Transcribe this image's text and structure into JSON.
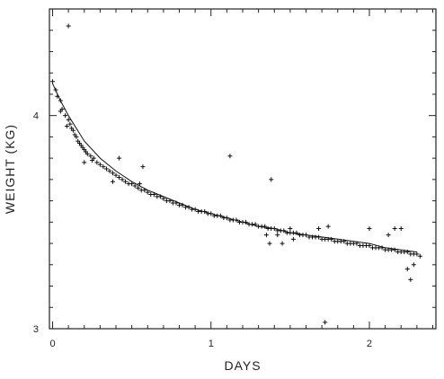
{
  "chart_data": {
    "type": "scatter",
    "title": "",
    "xlabel": "DAYS",
    "ylabel": "WEIGHT (KG)",
    "xlim": [
      -0.02,
      2.42
    ],
    "ylim": [
      3.0,
      4.5
    ],
    "x_ticks": [
      0,
      1,
      2
    ],
    "y_ticks": [
      3,
      4
    ],
    "x_tick_labels": [
      "0",
      "1",
      "2"
    ],
    "y_tick_labels": [
      "3",
      "4"
    ],
    "grid": false,
    "series": [
      {
        "marker": "plus",
        "x": [
          0.0,
          0.02,
          0.03,
          0.05,
          0.06,
          0.08,
          0.1,
          0.11,
          0.12,
          0.13,
          0.14,
          0.15,
          0.16,
          0.17,
          0.18,
          0.19,
          0.2,
          0.21,
          0.22,
          0.24,
          0.26,
          0.28,
          0.3,
          0.32,
          0.34,
          0.36,
          0.38,
          0.4,
          0.42,
          0.44,
          0.46,
          0.48,
          0.5,
          0.52,
          0.54,
          0.56,
          0.58,
          0.6,
          0.62,
          0.64,
          0.66,
          0.68,
          0.7,
          0.72,
          0.74,
          0.76,
          0.78,
          0.8,
          0.82,
          0.84,
          0.86,
          0.88,
          0.9,
          0.92,
          0.94,
          0.96,
          0.98,
          1.0,
          1.02,
          1.04,
          1.06,
          1.08,
          1.1,
          1.12,
          1.14,
          1.16,
          1.18,
          1.2,
          1.22,
          1.24,
          1.26,
          1.28,
          1.3,
          1.32,
          1.34,
          1.36,
          1.38,
          1.4,
          1.42,
          1.44,
          1.46,
          1.48,
          1.5,
          1.52,
          1.54,
          1.56,
          1.58,
          1.6,
          1.62,
          1.64,
          1.66,
          1.68,
          1.7,
          1.72,
          1.74,
          1.76,
          1.78,
          1.8,
          1.82,
          1.84,
          1.86,
          1.88,
          1.9,
          1.92,
          1.94,
          1.96,
          1.98,
          2.0,
          2.02,
          2.04,
          2.06,
          2.08,
          2.1,
          2.12,
          2.14,
          2.16,
          2.18,
          2.2,
          2.22,
          2.24,
          2.26,
          2.28,
          2.3,
          2.32
        ],
        "y": [
          4.16,
          4.12,
          4.09,
          4.07,
          4.03,
          4.0,
          3.98,
          3.96,
          3.94,
          3.93,
          3.91,
          3.9,
          3.88,
          3.87,
          3.86,
          3.85,
          3.84,
          3.83,
          3.82,
          3.81,
          3.8,
          3.78,
          3.77,
          3.76,
          3.75,
          3.74,
          3.73,
          3.72,
          3.71,
          3.7,
          3.69,
          3.68,
          3.68,
          3.67,
          3.66,
          3.65,
          3.65,
          3.64,
          3.63,
          3.63,
          3.62,
          3.62,
          3.61,
          3.6,
          3.6,
          3.59,
          3.59,
          3.58,
          3.58,
          3.57,
          3.57,
          3.56,
          3.56,
          3.55,
          3.55,
          3.55,
          3.54,
          3.54,
          3.53,
          3.53,
          3.53,
          3.52,
          3.52,
          3.51,
          3.51,
          3.51,
          3.5,
          3.5,
          3.5,
          3.49,
          3.49,
          3.49,
          3.48,
          3.48,
          3.48,
          3.47,
          3.47,
          3.47,
          3.46,
          3.46,
          3.46,
          3.45,
          3.45,
          3.45,
          3.45,
          3.44,
          3.44,
          3.44,
          3.43,
          3.43,
          3.43,
          3.43,
          3.42,
          3.42,
          3.42,
          3.42,
          3.41,
          3.41,
          3.41,
          3.41,
          3.4,
          3.4,
          3.4,
          3.4,
          3.39,
          3.39,
          3.39,
          3.39,
          3.38,
          3.38,
          3.38,
          3.38,
          3.37,
          3.37,
          3.37,
          3.37,
          3.36,
          3.36,
          3.36,
          3.36,
          3.35,
          3.35,
          3.35,
          3.34
        ]
      },
      {
        "marker": "plus",
        "x": [
          0.1,
          0.05,
          0.09,
          0.2,
          0.25,
          0.38,
          0.42,
          0.55,
          0.57,
          1.12,
          1.38,
          1.42,
          1.35,
          1.37,
          1.45,
          1.5,
          1.52,
          1.68,
          1.72,
          1.74,
          2.0,
          2.12,
          2.16,
          2.2,
          2.24,
          2.26,
          2.28
        ],
        "y": [
          4.42,
          4.02,
          3.95,
          3.78,
          3.79,
          3.69,
          3.8,
          3.68,
          3.76,
          3.81,
          3.7,
          3.44,
          3.44,
          3.4,
          3.4,
          3.47,
          3.42,
          3.47,
          3.03,
          3.48,
          3.47,
          3.44,
          3.47,
          3.47,
          3.28,
          3.23,
          3.3
        ]
      }
    ],
    "fit_line": {
      "x": [
        0.0,
        0.05,
        0.1,
        0.2,
        0.3,
        0.4,
        0.5,
        0.6,
        0.7,
        0.8,
        0.9,
        1.0,
        1.1,
        1.2,
        1.3,
        1.4,
        1.5,
        1.6,
        1.7,
        1.8,
        1.9,
        2.0,
        2.1,
        2.2,
        2.3
      ],
      "y": [
        4.15,
        4.07,
        4.0,
        3.88,
        3.8,
        3.74,
        3.69,
        3.65,
        3.62,
        3.59,
        3.56,
        3.54,
        3.52,
        3.5,
        3.48,
        3.47,
        3.45,
        3.44,
        3.43,
        3.42,
        3.41,
        3.4,
        3.38,
        3.37,
        3.36
      ]
    }
  }
}
